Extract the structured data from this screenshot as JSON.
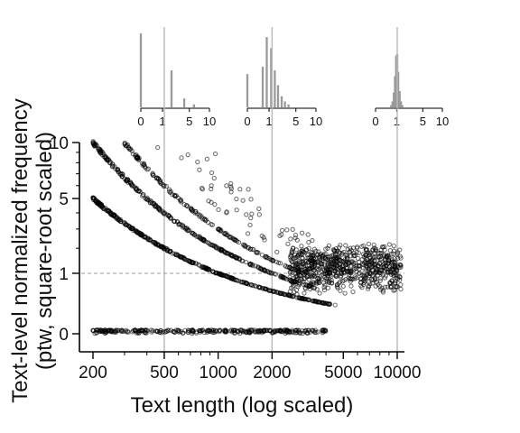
{
  "chart_data": {
    "type": "scatter",
    "title": "",
    "xlabel": "Text length (log scaled)",
    "ylabel": "Text-level normalized frequency\n(ptw, square-root scaled)",
    "x_scale": "log",
    "y_scale": "sqrt",
    "xlim": [
      170,
      11500
    ],
    "ylim": [
      0,
      10
    ],
    "x_ticks": [
      200,
      500,
      1000,
      2000,
      5000,
      10000
    ],
    "x_tick_labels": [
      "200",
      "500",
      "1000",
      "2000",
      "5000",
      "10000"
    ],
    "y_ticks": [
      0,
      1,
      5,
      10
    ],
    "y_tick_labels": [
      "0",
      "1",
      "5",
      "10"
    ],
    "reference_line_y": 1,
    "vertical_guides_x": [
      500,
      2000,
      10000
    ],
    "series": [
      {
        "x": [
          200,
          250,
          300,
          400,
          500,
          700,
          1000,
          1500,
          2000,
          3000,
          4000
        ],
        "y": [
          0,
          0,
          0,
          0,
          0,
          0,
          0,
          0,
          0,
          0,
          0
        ]
      },
      {
        "x": [
          200,
          300,
          500,
          700,
          1000,
          1500,
          2000,
          3000,
          4000
        ],
        "y": [
          5.0,
          3.33,
          2.0,
          1.43,
          1.0,
          0.67,
          0.5,
          0.33,
          0.25
        ]
      },
      {
        "x": [
          200,
          300,
          500,
          700,
          1000,
          1500,
          2000,
          3000
        ],
        "y": [
          10.0,
          6.67,
          4.0,
          2.86,
          2.0,
          1.33,
          1.0,
          0.67
        ]
      },
      {
        "x": [
          300,
          500,
          700,
          1000,
          1500,
          2000,
          3000
        ],
        "y": [
          10.0,
          6.0,
          4.29,
          3.0,
          2.0,
          1.5,
          1.0
        ]
      },
      {
        "x": [
          3000,
          4000,
          5000,
          6000,
          7000,
          8000,
          9000,
          10000
        ],
        "y": [
          1.1,
          1.0,
          1.0,
          0.95,
          1.05,
          1.0,
          1.0,
          1.0
        ]
      }
    ],
    "insets": [
      {
        "type": "bar",
        "x_ticks": [
          0,
          1,
          5,
          10
        ],
        "x_tick_labels": [
          "0",
          "1",
          "5",
          "10"
        ],
        "bars": [
          {
            "x": 0,
            "h": 1.0
          },
          {
            "x": 2,
            "h": 0.5
          },
          {
            "x": 4,
            "h": 0.12
          },
          {
            "x": 6,
            "h": 0.04
          }
        ]
      },
      {
        "type": "bar",
        "x_ticks": [
          0,
          1,
          5,
          10
        ],
        "x_tick_labels": [
          "0",
          "1",
          "5",
          "10"
        ],
        "bars": [
          {
            "x": 0,
            "h": 0.45
          },
          {
            "x": 0.5,
            "h": 0.55
          },
          {
            "x": 0.8,
            "h": 0.95
          },
          {
            "x": 1.2,
            "h": 0.8
          },
          {
            "x": 1.6,
            "h": 0.5
          },
          {
            "x": 2.0,
            "h": 0.3
          },
          {
            "x": 2.5,
            "h": 0.15
          },
          {
            "x": 3.0,
            "h": 0.08
          },
          {
            "x": 3.6,
            "h": 0.04
          }
        ]
      },
      {
        "type": "histogram",
        "x_ticks": [
          0,
          1,
          5,
          10
        ],
        "x_tick_labels": [
          "0",
          "1",
          "5",
          "10"
        ],
        "bars": [
          {
            "x": 0.55,
            "h": 0.03
          },
          {
            "x": 0.65,
            "h": 0.08
          },
          {
            "x": 0.75,
            "h": 0.2
          },
          {
            "x": 0.85,
            "h": 0.42
          },
          {
            "x": 0.95,
            "h": 0.7
          },
          {
            "x": 1.05,
            "h": 0.72
          },
          {
            "x": 1.15,
            "h": 0.48
          },
          {
            "x": 1.3,
            "h": 0.22
          },
          {
            "x": 1.45,
            "h": 0.08
          },
          {
            "x": 1.6,
            "h": 0.03
          }
        ]
      }
    ]
  }
}
